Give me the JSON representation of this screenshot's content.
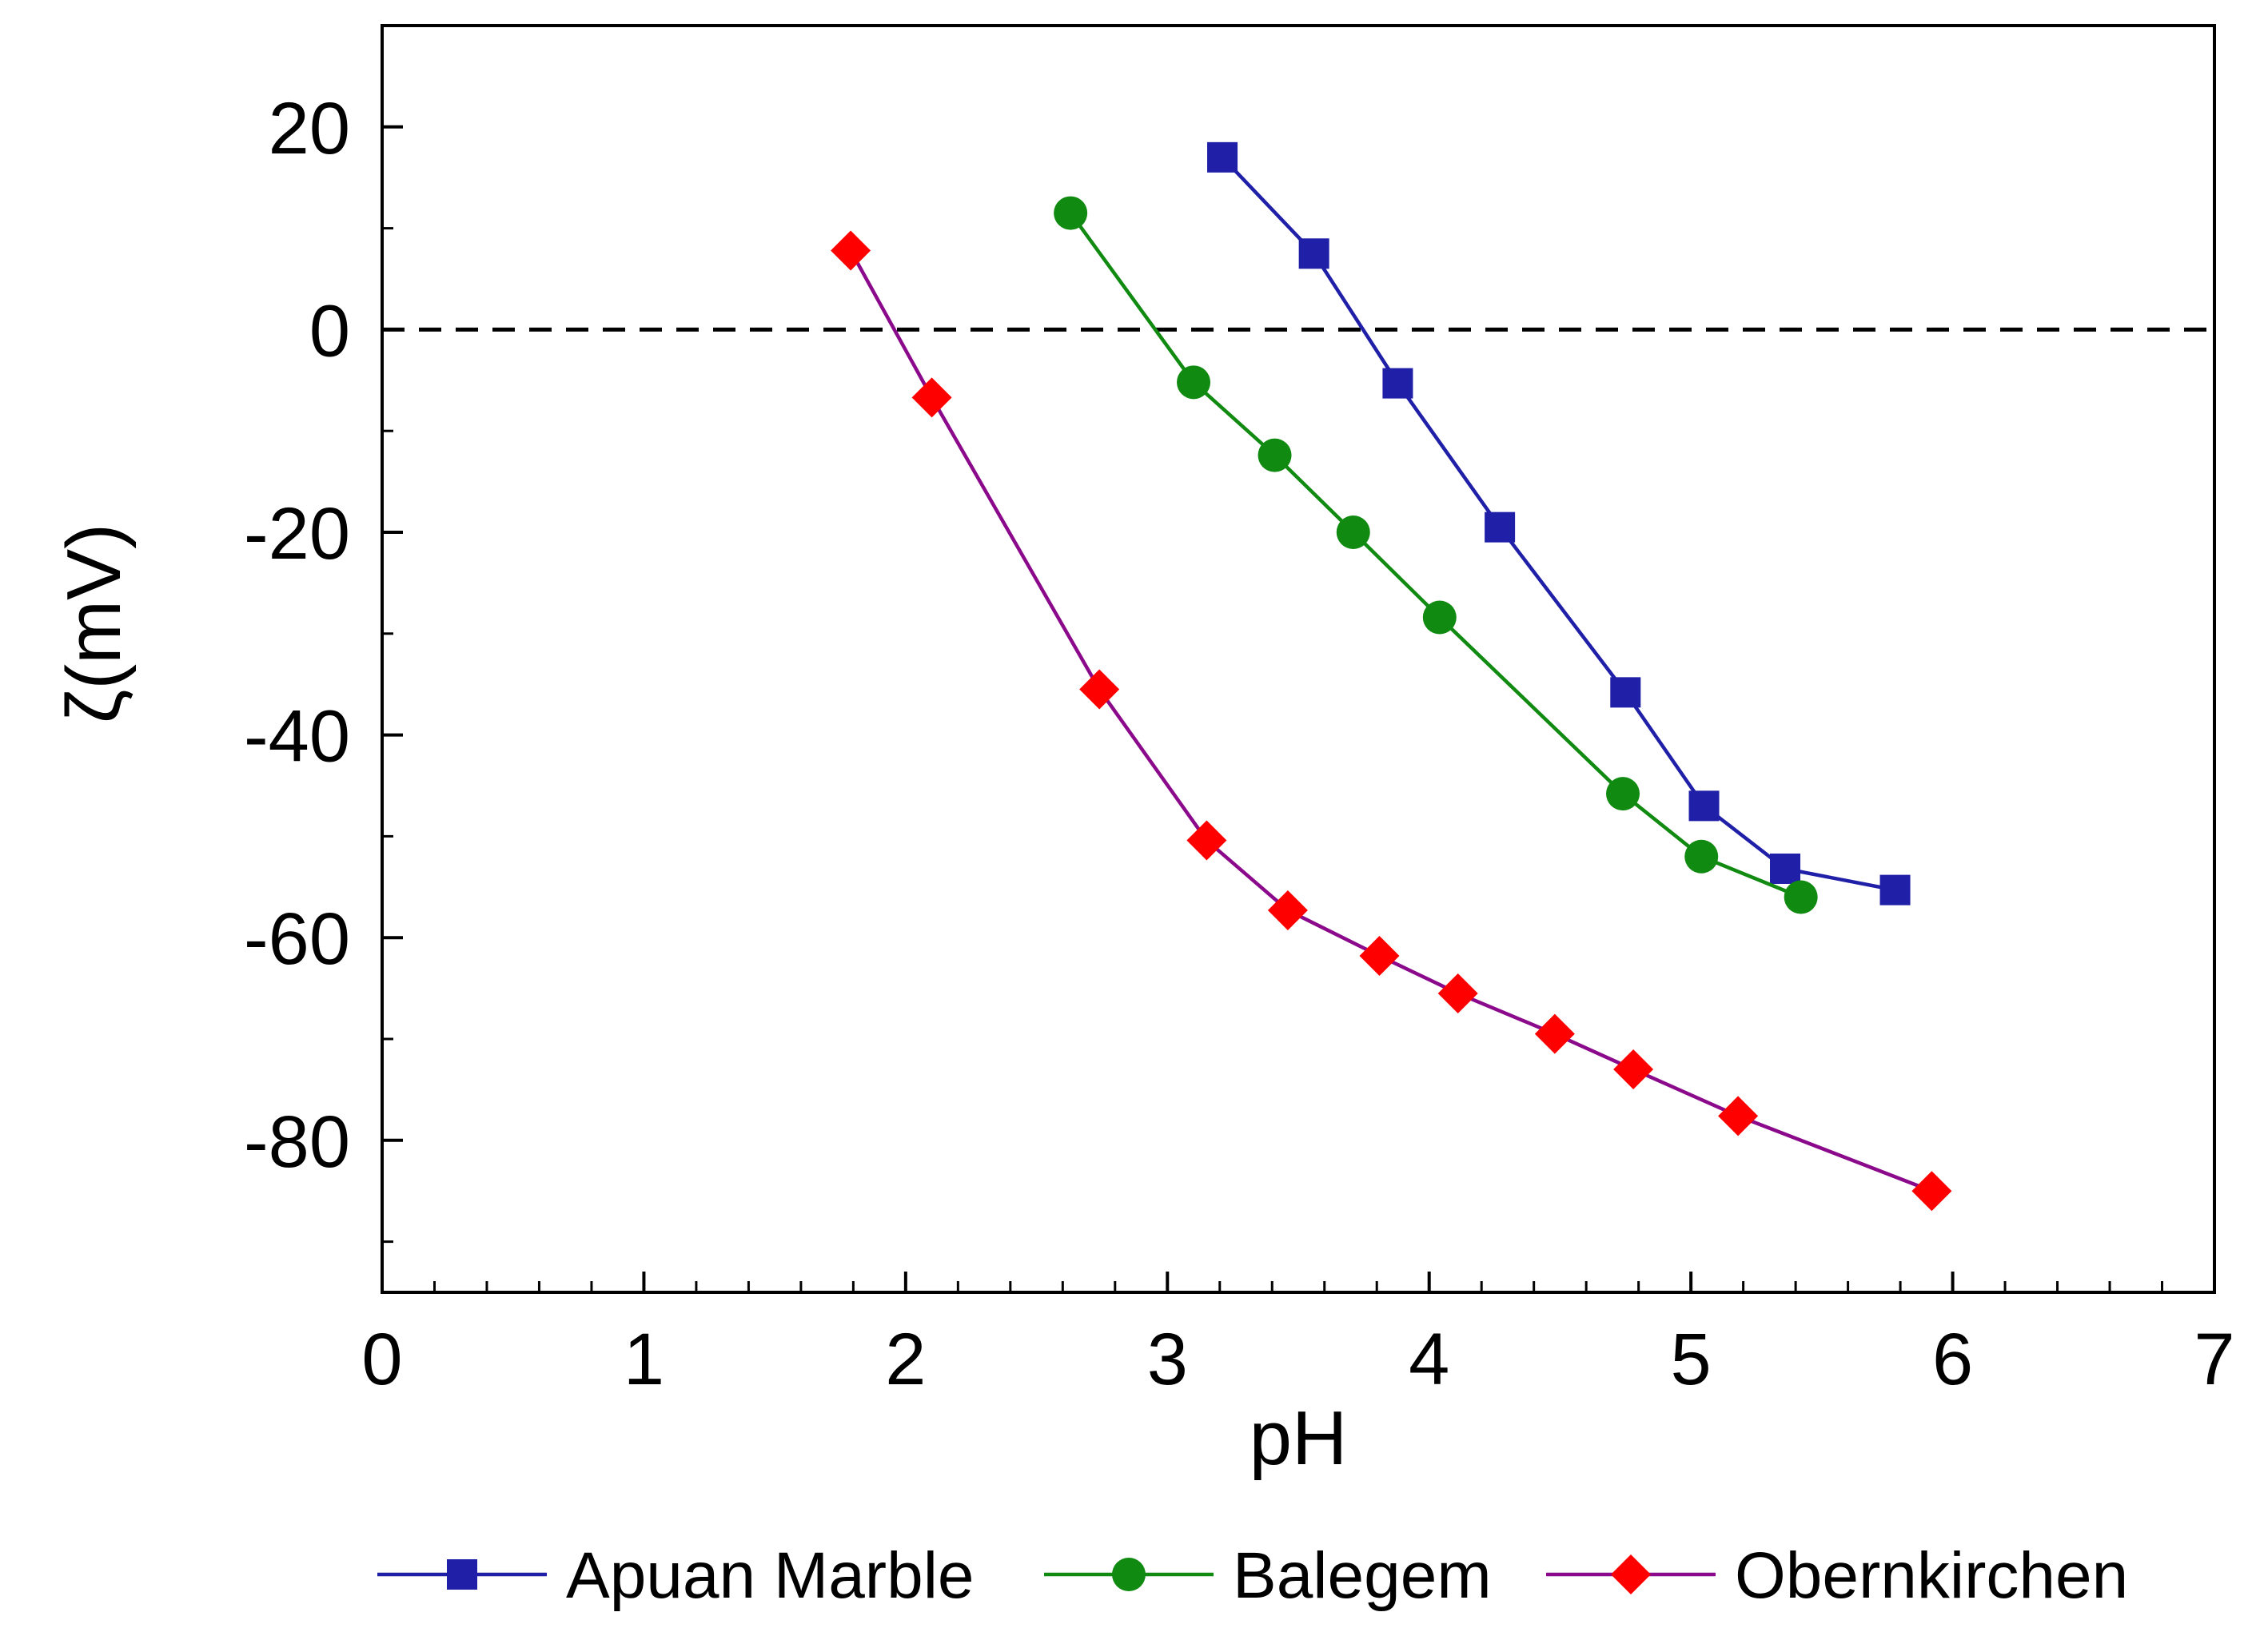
{
  "chart_data": {
    "type": "line",
    "title": "",
    "xlabel": "pH",
    "ylabel": "ζ(mV)",
    "xlim": [
      0,
      7
    ],
    "ylim": [
      -95,
      30
    ],
    "xticks": [
      0,
      1,
      2,
      3,
      4,
      5,
      6,
      7
    ],
    "xtick_labels": [
      "0",
      "1",
      "2",
      "3",
      "4",
      "5",
      "6",
      "7"
    ],
    "yticks": [
      20,
      0,
      -20,
      -40,
      -60,
      -80
    ],
    "ytick_labels": [
      "20",
      "0",
      "-20",
      "-40",
      "-60",
      "-80"
    ],
    "reference_line": {
      "y": 0,
      "style": "dashed",
      "color": "#000000"
    },
    "legend_position": "bottom",
    "series": [
      {
        "name": "Apuan Marble",
        "color": "#1f1fa8",
        "marker": "square",
        "x": [
          3.21,
          3.56,
          3.88,
          4.27,
          4.75,
          5.05,
          5.36,
          5.78
        ],
        "y": [
          17,
          7.5,
          -5.3,
          -19.5,
          -35.8,
          -47,
          -53.2,
          -55.3
        ]
      },
      {
        "name": "Balegem",
        "color": "#118a11",
        "marker": "circle",
        "x": [
          2.63,
          3.1,
          3.41,
          3.71,
          4.04,
          4.74,
          5.04,
          5.42
        ],
        "y": [
          11.5,
          -5.2,
          -12.4,
          -20,
          -28.4,
          -45.8,
          -52,
          -56
        ]
      },
      {
        "name": "Obernkirchen",
        "color": "#8b0a8b",
        "marker": "diamond",
        "marker_color": "#ff0000",
        "x": [
          1.79,
          2.1,
          2.74,
          3.15,
          3.46,
          3.81,
          4.11,
          4.48,
          4.78,
          5.18,
          5.92
        ],
        "y": [
          7.8,
          -6.7,
          -35.5,
          -50.4,
          -57.3,
          -61.8,
          -65.5,
          -69.5,
          -73,
          -77.6,
          -85
        ]
      }
    ]
  }
}
